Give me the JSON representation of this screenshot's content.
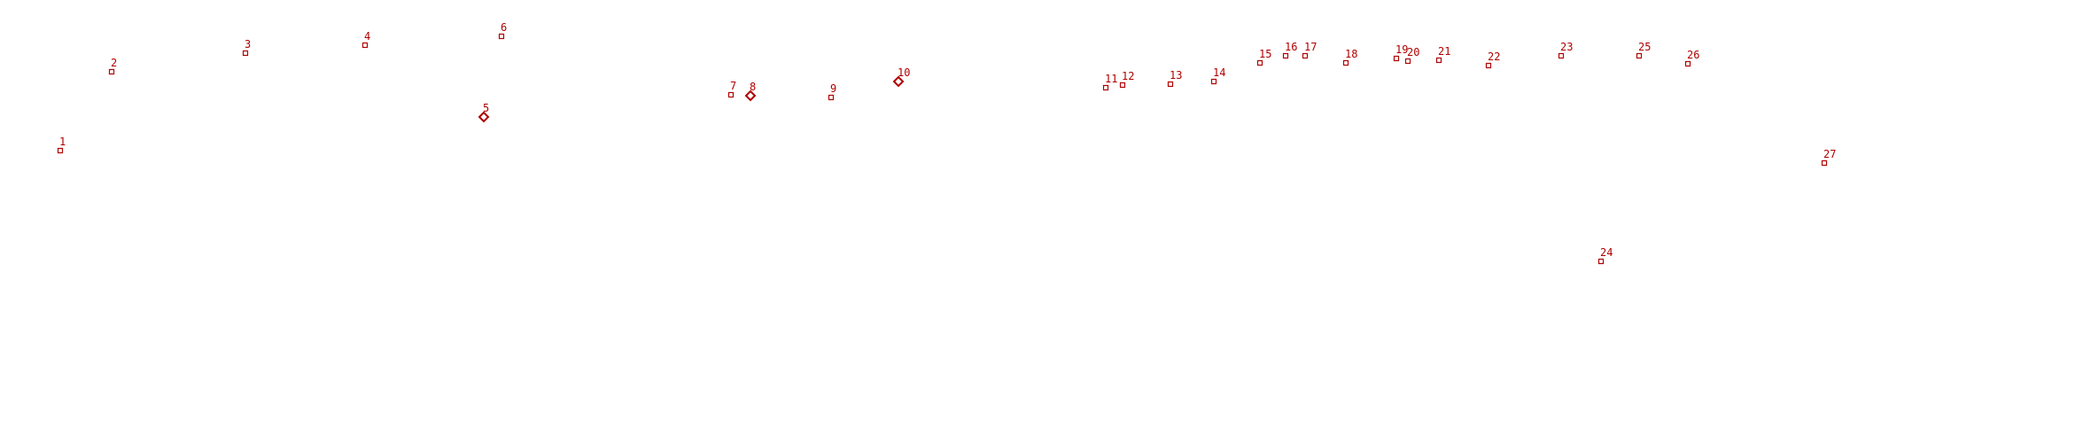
{
  "marker_color": "#b00000",
  "points": [
    {
      "label": "1",
      "marker": "square"
    },
    {
      "label": "2",
      "marker": "square"
    },
    {
      "label": "3",
      "marker": "square"
    },
    {
      "label": "4",
      "marker": "square"
    },
    {
      "label": "5",
      "marker": "diamond"
    },
    {
      "label": "6",
      "marker": "square"
    },
    {
      "label": "7",
      "marker": "square"
    },
    {
      "label": "8",
      "marker": "diamond"
    },
    {
      "label": "9",
      "marker": "square"
    },
    {
      "label": "10",
      "marker": "diamond"
    },
    {
      "label": "11",
      "marker": "square"
    },
    {
      "label": "12",
      "marker": "square"
    },
    {
      "label": "13",
      "marker": "square"
    },
    {
      "label": "14",
      "marker": "square"
    },
    {
      "label": "15",
      "marker": "square"
    },
    {
      "label": "16",
      "marker": "square"
    },
    {
      "label": "17",
      "marker": "square"
    },
    {
      "label": "18",
      "marker": "square"
    },
    {
      "label": "19",
      "marker": "square"
    },
    {
      "label": "20",
      "marker": "square"
    },
    {
      "label": "21",
      "marker": "square"
    },
    {
      "label": "22",
      "marker": "square"
    },
    {
      "label": "23",
      "marker": "square"
    },
    {
      "label": "24",
      "marker": "square"
    },
    {
      "label": "25",
      "marker": "square"
    },
    {
      "label": "26",
      "marker": "square"
    },
    {
      "label": "27",
      "marker": "square"
    }
  ]
}
